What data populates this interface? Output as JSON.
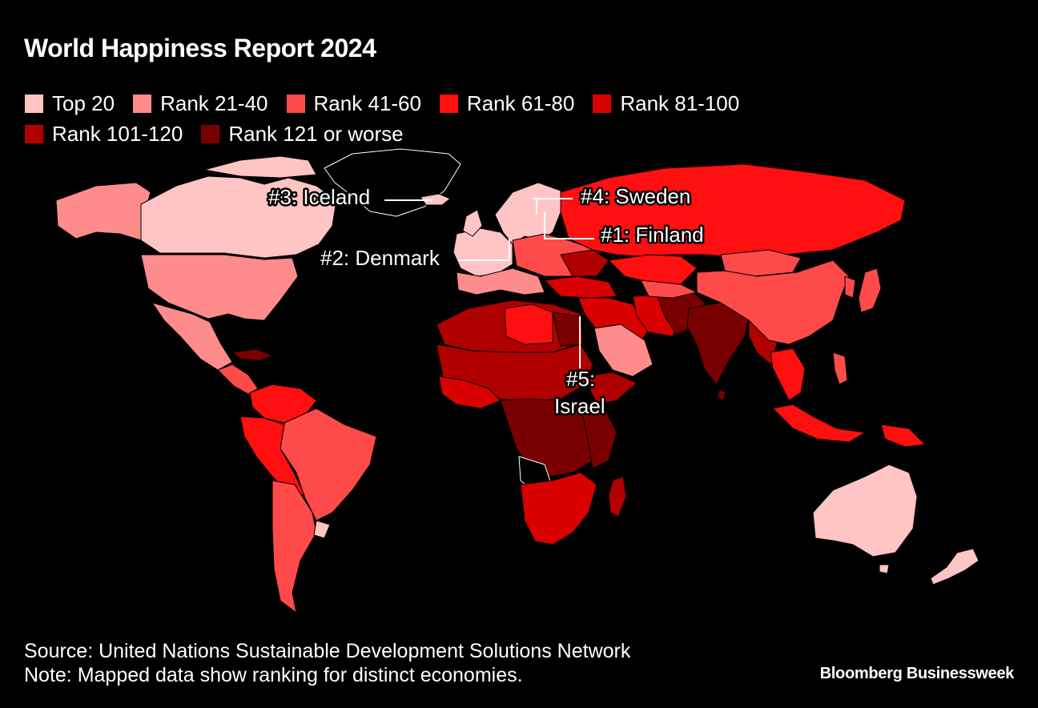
{
  "title": "World Happiness Report 2024",
  "legend": [
    {
      "label": "Top 20",
      "color": "#ffc4c4"
    },
    {
      "label": "Rank 21-40",
      "color": "#ff8c8c"
    },
    {
      "label": "Rank 41-60",
      "color": "#ff4a4a"
    },
    {
      "label": "Rank 61-80",
      "color": "#ff0f0f"
    },
    {
      "label": "Rank 81-100",
      "color": "#d80000"
    },
    {
      "label": "Rank 101-120",
      "color": "#b00000"
    },
    {
      "label": "Rank 121 or worse",
      "color": "#7a0000"
    }
  ],
  "callouts": {
    "finland": "#1: Finland",
    "denmark": "#2: Denmark",
    "iceland": "#3: Iceland",
    "sweden": "#4: Sweden",
    "israel_rank": "#5:",
    "israel_name": "Israel"
  },
  "footer": {
    "source": "Source: United Nations Sustainable Development Solutions Network",
    "note": "Note: Mapped data show ranking for distinct economies."
  },
  "brand": "Bloomberg Businessweek"
}
